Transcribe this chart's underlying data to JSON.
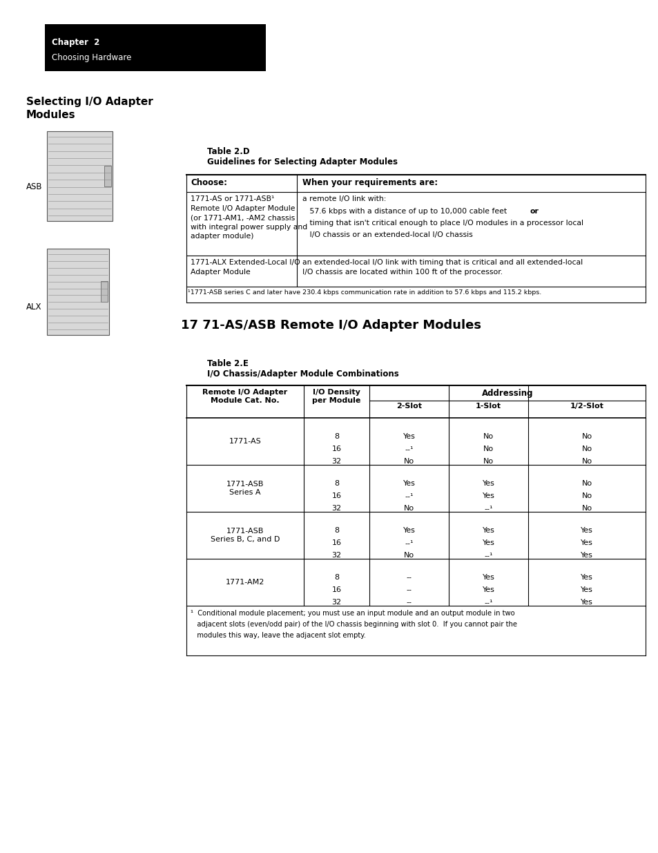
{
  "bg_color": "#ffffff",
  "chapter_box": {
    "text1": "Chapter  2",
    "text2": "Choosing Hardware",
    "bg": "#000000",
    "text_color": "#ffffff"
  },
  "section_title": "Selecting I/O Adapter\nModules",
  "left_label_asb": "ASB",
  "left_label_alx": "ALX",
  "table_d_label": "Table 2.D",
  "table_d_title": "Guidelines for Selecting Adapter Modules",
  "table_d_col1_header": "Choose:",
  "table_d_col2_header": "When your requirements are:",
  "table_d_row1_col1": "1771-AS or 1771-ASB¹\nRemote I/O Adapter Module\n(or 1771-AM1, -AM2 chassis\nwith integral power supply and\nadapter module)",
  "table_d_row1_col2_line1": "a remote I/O link with:",
  "table_d_row1_col2_line2a": "   57.6 kbps with a distance of up to 10,000 cable feet ",
  "table_d_row1_col2_line2b": "or",
  "table_d_row1_col2_line3": "   timing that isn't critical enough to place I/O modules in a processor local",
  "table_d_row1_col2_line4": "   I/O chassis or an extended-local I/O chassis",
  "table_d_row2_col1": "1771-ALX Extended-Local I/O\nAdapter Module",
  "table_d_row2_col2": "an extended-local I/O link with timing that is critical and all extended-local\nI/O chassis are located within 100 ft of the processor.",
  "table_d_footnote": "¹1771-ASB series C and later have 230.4 kbps communication rate in addition to 57.6 kbps and 115.2 kbps.",
  "section2_title": "17 71-AS/ASB Remote I/O Adapter Modules",
  "table_e_label": "Table 2.E",
  "table_e_title": "I/O Chassis/Adapter Module Combinations",
  "table_e_col_headers": [
    "Remote I/O Adapter\nModule Cat. No.",
    "I/O Density\nper Module",
    "2-Slot",
    "1-Slot",
    "1/2-Slot"
  ],
  "table_e_addressing_header": "Addressing",
  "table_e_rows": [
    {
      "name": "1771-AS",
      "densities": [
        "8",
        "16",
        "32"
      ],
      "slot2": [
        "Yes",
        "--¹",
        "No"
      ],
      "slot1": [
        "No",
        "No",
        "No"
      ],
      "slot_half": [
        "No",
        "No",
        "No"
      ]
    },
    {
      "name": "1771-ASB\nSeries A",
      "densities": [
        "8",
        "16",
        "32"
      ],
      "slot2": [
        "Yes",
        "--¹",
        "No"
      ],
      "slot1": [
        "Yes",
        "Yes",
        "--¹"
      ],
      "slot_half": [
        "No",
        "No",
        "No"
      ]
    },
    {
      "name": "1771-ASB\nSeries B, C, and D",
      "densities": [
        "8",
        "16",
        "32"
      ],
      "slot2": [
        "Yes",
        "--¹",
        "No"
      ],
      "slot1": [
        "Yes",
        "Yes",
        "--¹"
      ],
      "slot_half": [
        "Yes",
        "Yes",
        "Yes"
      ]
    },
    {
      "name": "1771-AM2",
      "densities": [
        "8",
        "16",
        "32"
      ],
      "slot2": [
        "--",
        "--",
        "--"
      ],
      "slot1": [
        "Yes",
        "Yes",
        "--¹"
      ],
      "slot_half": [
        "Yes",
        "Yes",
        "Yes"
      ]
    }
  ],
  "table_e_footnote_line1": "¹  Conditional module placement; you must use an input module and an output module in two",
  "table_e_footnote_line2": "   adjacent slots (even/odd pair) of the I/O chassis beginning with slot 0.  If you cannot pair the",
  "table_e_footnote_line3": "   modules this way, leave the adjacent slot empty."
}
